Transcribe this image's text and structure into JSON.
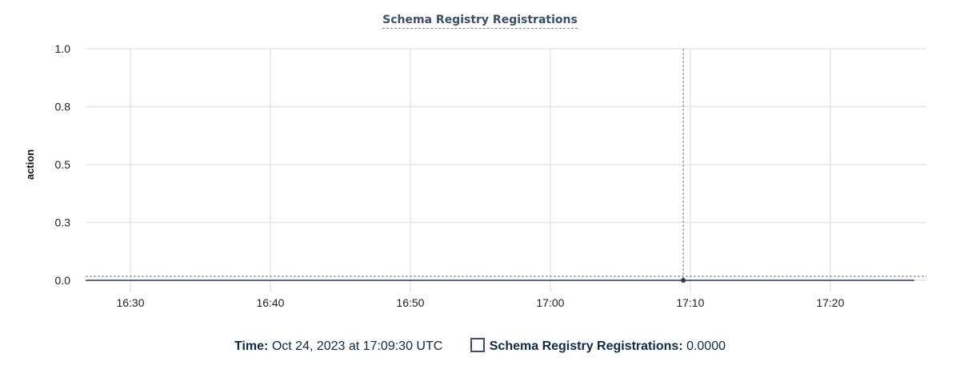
{
  "chart_data": {
    "type": "line",
    "title": "Schema Registry Registrations",
    "ylabel": "action",
    "xlabel": "",
    "ylim": [
      0,
      1
    ],
    "yticks": [
      {
        "value": 0,
        "label": "0.0"
      },
      {
        "value": 0.25,
        "label": "0.3"
      },
      {
        "value": 0.5,
        "label": "0.5"
      },
      {
        "value": 0.75,
        "label": "0.8"
      },
      {
        "value": 1,
        "label": "1.0"
      }
    ],
    "xlim": [
      "16:26:48",
      "17:26:52"
    ],
    "xticks": [
      "16:30",
      "16:40",
      "16:50",
      "17:00",
      "17:10",
      "17:20"
    ],
    "grid": true,
    "series": [
      {
        "name": "Schema Registry Registrations",
        "color": "#2b3b5c",
        "x": [
          "16:26:48",
          "17:26:00"
        ],
        "y": [
          0,
          0
        ]
      }
    ],
    "cursor": {
      "x": "17:09:30",
      "y": 0
    }
  },
  "legend": {
    "time_label": "Time:",
    "time_value": "Oct 24, 2023 at 17:09:30 UTC",
    "series_label": "Schema Registry Registrations:",
    "series_value": "0.0000"
  }
}
